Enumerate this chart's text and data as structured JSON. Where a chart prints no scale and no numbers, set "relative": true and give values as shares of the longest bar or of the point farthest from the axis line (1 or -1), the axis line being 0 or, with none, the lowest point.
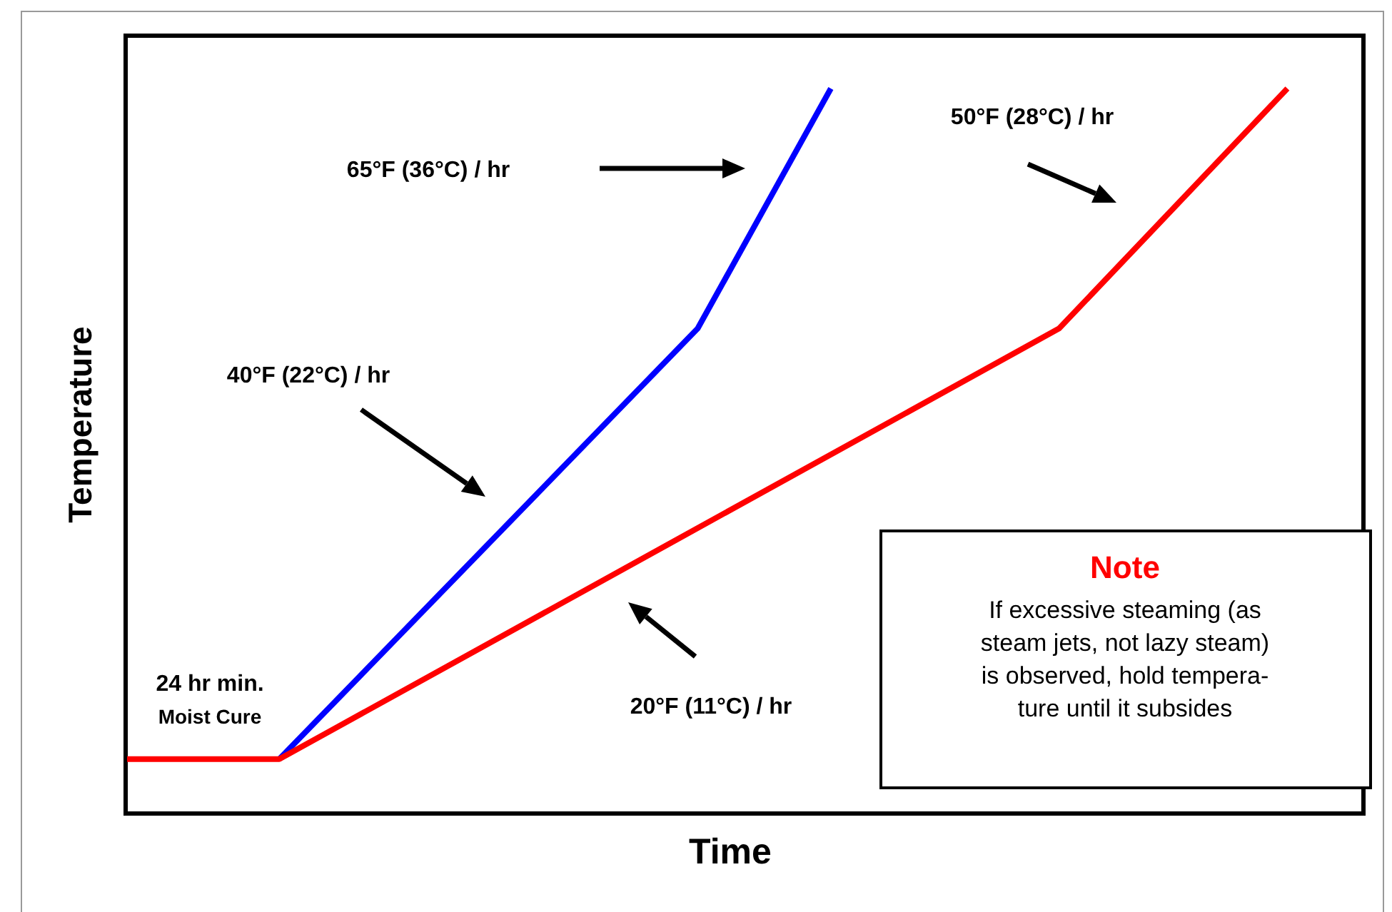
{
  "chart_data": {
    "type": "line",
    "relative": true,
    "xlabel": "Time",
    "ylabel": "Temperature",
    "line_style": "solid",
    "categories": [
      null,
      null,
      null,
      null,
      null,
      null,
      null,
      null,
      null,
      null,
      null,
      null,
      null,
      null,
      null,
      null,
      null,
      null,
      null,
      null,
      null,
      null,
      null,
      null,
      null,
      null,
      null,
      null,
      null,
      null,
      null,
      null,
      null,
      null,
      null,
      null,
      null,
      null,
      null,
      null,
      null,
      null,
      null,
      null,
      null,
      null,
      null,
      null,
      null,
      null,
      null,
      null,
      null,
      null,
      null,
      null,
      null,
      null,
      null,
      null,
      null,
      null,
      null,
      null,
      null,
      null
    ],
    "series": [
      {
        "color": "#0000ff",
        "values": [
          null,
          null,
          null,
          null,
          null,
          null,
          null,
          null,
          0.075,
          null,
          null,
          null,
          null,
          null,
          null,
          null,
          null,
          null,
          null,
          null,
          null,
          null,
          null,
          null,
          null,
          null,
          null,
          null,
          null,
          null,
          0.669,
          null,
          null,
          null,
          null,
          null,
          null,
          1,
          null,
          null,
          null,
          null,
          null,
          null,
          null,
          null,
          null,
          null,
          null,
          null,
          null,
          null,
          null,
          null,
          null,
          null,
          null,
          null,
          null,
          null,
          null,
          null,
          null,
          null,
          null,
          null
        ]
      },
      {
        "color": "#ff0000",
        "values": [
          0.075,
          null,
          null,
          null,
          null,
          null,
          null,
          null,
          0.075,
          null,
          null,
          null,
          null,
          null,
          null,
          null,
          null,
          null,
          null,
          null,
          null,
          null,
          null,
          null,
          null,
          null,
          null,
          null,
          null,
          null,
          null,
          null,
          null,
          null,
          null,
          null,
          null,
          null,
          null,
          null,
          null,
          null,
          null,
          null,
          null,
          null,
          null,
          null,
          null,
          0.669,
          null,
          null,
          null,
          null,
          null,
          null,
          null,
          null,
          null,
          null,
          null,
          1,
          null,
          null,
          null,
          null
        ]
      }
    ],
    "annotations": [
      "65°F (36°C) / hr",
      "40°F (22°C) / hr",
      "50°F (28°C) / hr",
      "20°F (11°C) / hr",
      "24 hr min.",
      "Moist Cure",
      "Note",
      "If excessive steaming (as\nsteam jets, not lazy steam)\nis observed, hold tempera-\nture until it subsides"
    ]
  }
}
